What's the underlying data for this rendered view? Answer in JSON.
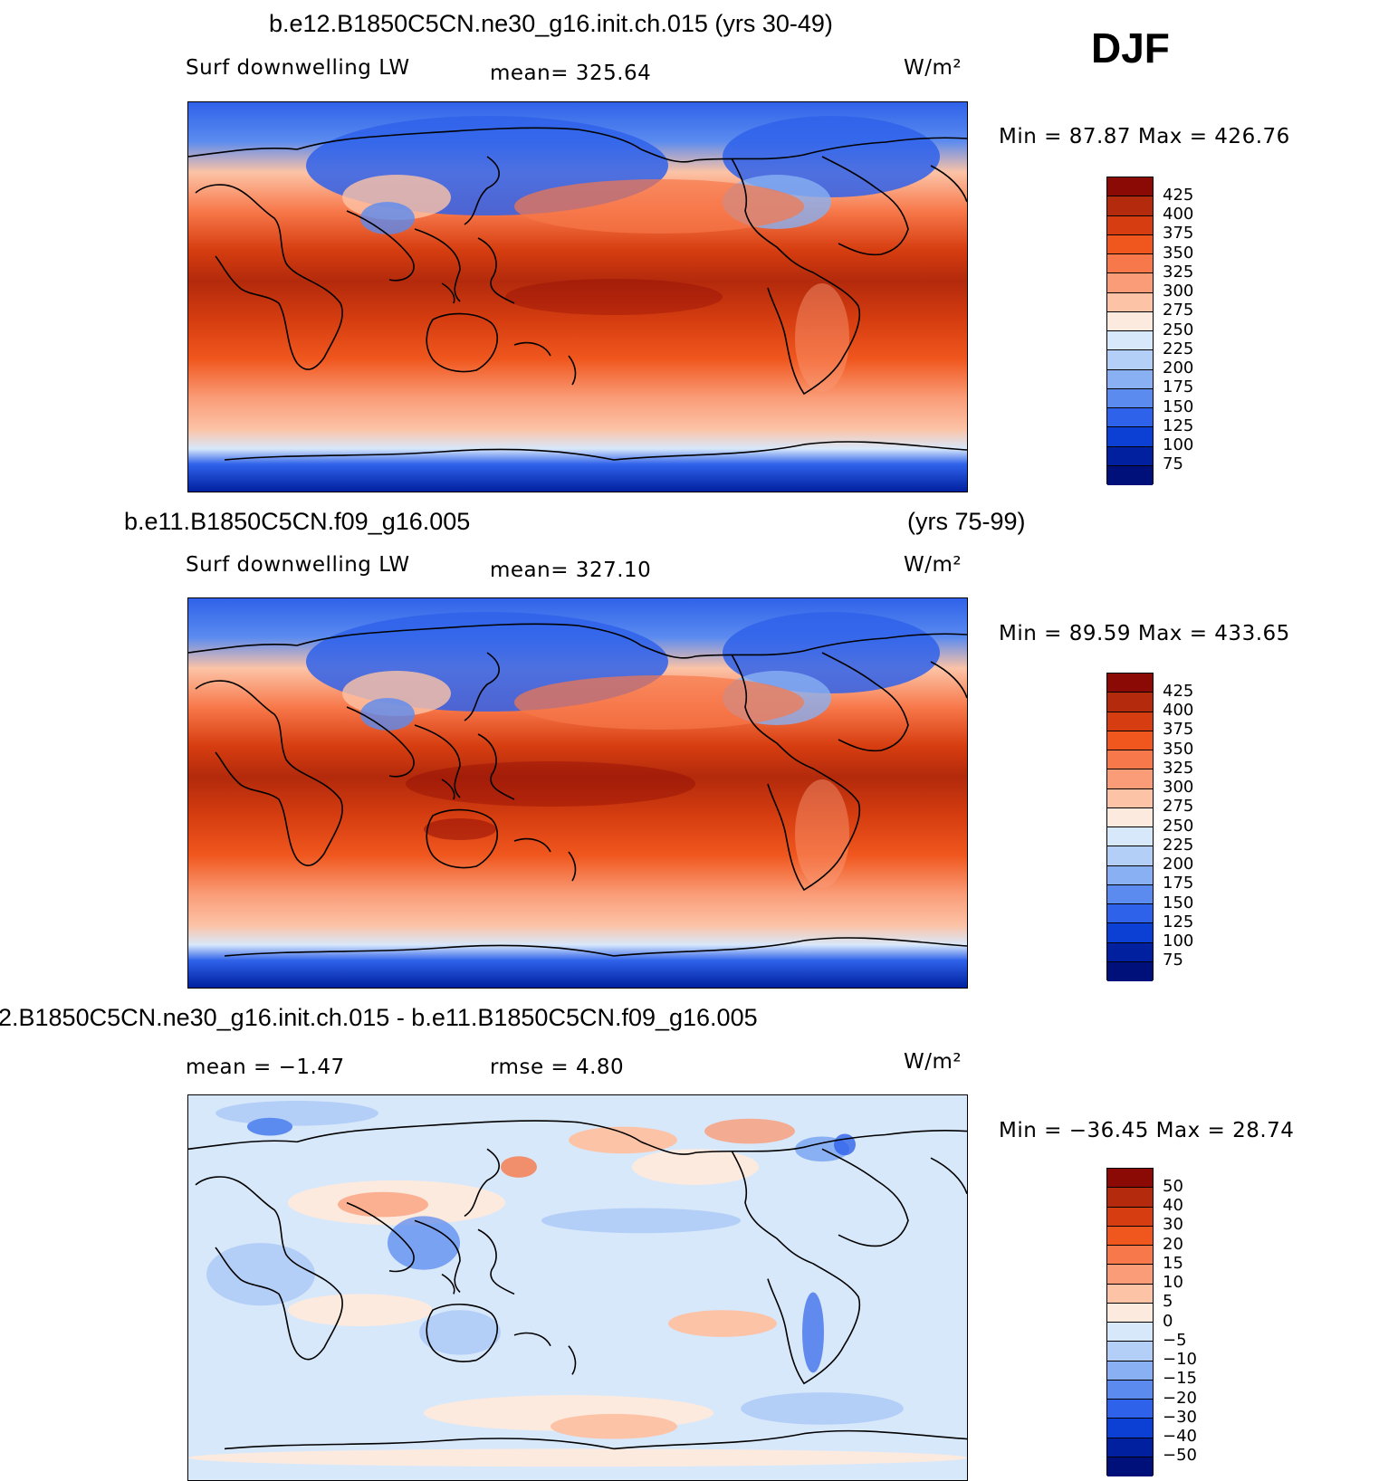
{
  "season": "DJF",
  "panels": [
    {
      "title": "b.e12.B1850C5CN.ne30_g16.init.ch.015 (yrs 30-49)",
      "variable": "Surf downwelling LW",
      "stat": "mean=  325.64",
      "units": "W/m²",
      "minmax": "Min =   87.87  Max  =  426.76",
      "colorbar_labels": [
        "425",
        "400",
        "375",
        "350",
        "325",
        "300",
        "275",
        "250",
        "225",
        "200",
        "175",
        "150",
        "125",
        "100",
        "75"
      ]
    },
    {
      "title_left": "b.e11.B1850C5CN.f09_g16.005",
      "title_right": "(yrs 75-99)",
      "variable": "Surf downwelling LW",
      "stat": "mean=  327.10",
      "units": "W/m²",
      "minmax": "Min =   89.59  Max  =  433.65",
      "colorbar_labels": [
        "425",
        "400",
        "375",
        "350",
        "325",
        "300",
        "275",
        "250",
        "225",
        "200",
        "175",
        "150",
        "125",
        "100",
        "75"
      ]
    },
    {
      "title": "2.B1850C5CN.ne30_g16.init.ch.015 - b.e11.B1850C5CN.f09_g16.005",
      "stat_left": "mean =   −1.47",
      "stat_right": "rmse =    4.80",
      "units": "W/m²",
      "minmax": "Min =  −36.45  Max  =    28.74",
      "colorbar_labels": [
        "50",
        "40",
        "30",
        "20",
        "15",
        "10",
        "5",
        "0",
        "−5",
        "−10",
        "−15",
        "−20",
        "−30",
        "−40",
        "−50"
      ]
    }
  ],
  "colors": {
    "flux_scale": [
      "#8b0a06",
      "#b32a0c",
      "#d63d10",
      "#f0571e",
      "#f7784a",
      "#fa9c78",
      "#fcc3a6",
      "#fdeade",
      "#d8e8fb",
      "#b4cff7",
      "#88b0f2",
      "#5b8bef",
      "#2f62ea",
      "#0c3fd4",
      "#00209f",
      "#00107a"
    ],
    "diff_scale": [
      "#8b0a06",
      "#b32a0c",
      "#d63d10",
      "#f0571e",
      "#f7784a",
      "#fa9c78",
      "#fcc3a6",
      "#fdeade",
      "#d8e8fb",
      "#b4cff7",
      "#88b0f2",
      "#5b8bef",
      "#2f62ea",
      "#0c3fd4",
      "#00209f",
      "#00107a"
    ],
    "coast": "#000000"
  }
}
